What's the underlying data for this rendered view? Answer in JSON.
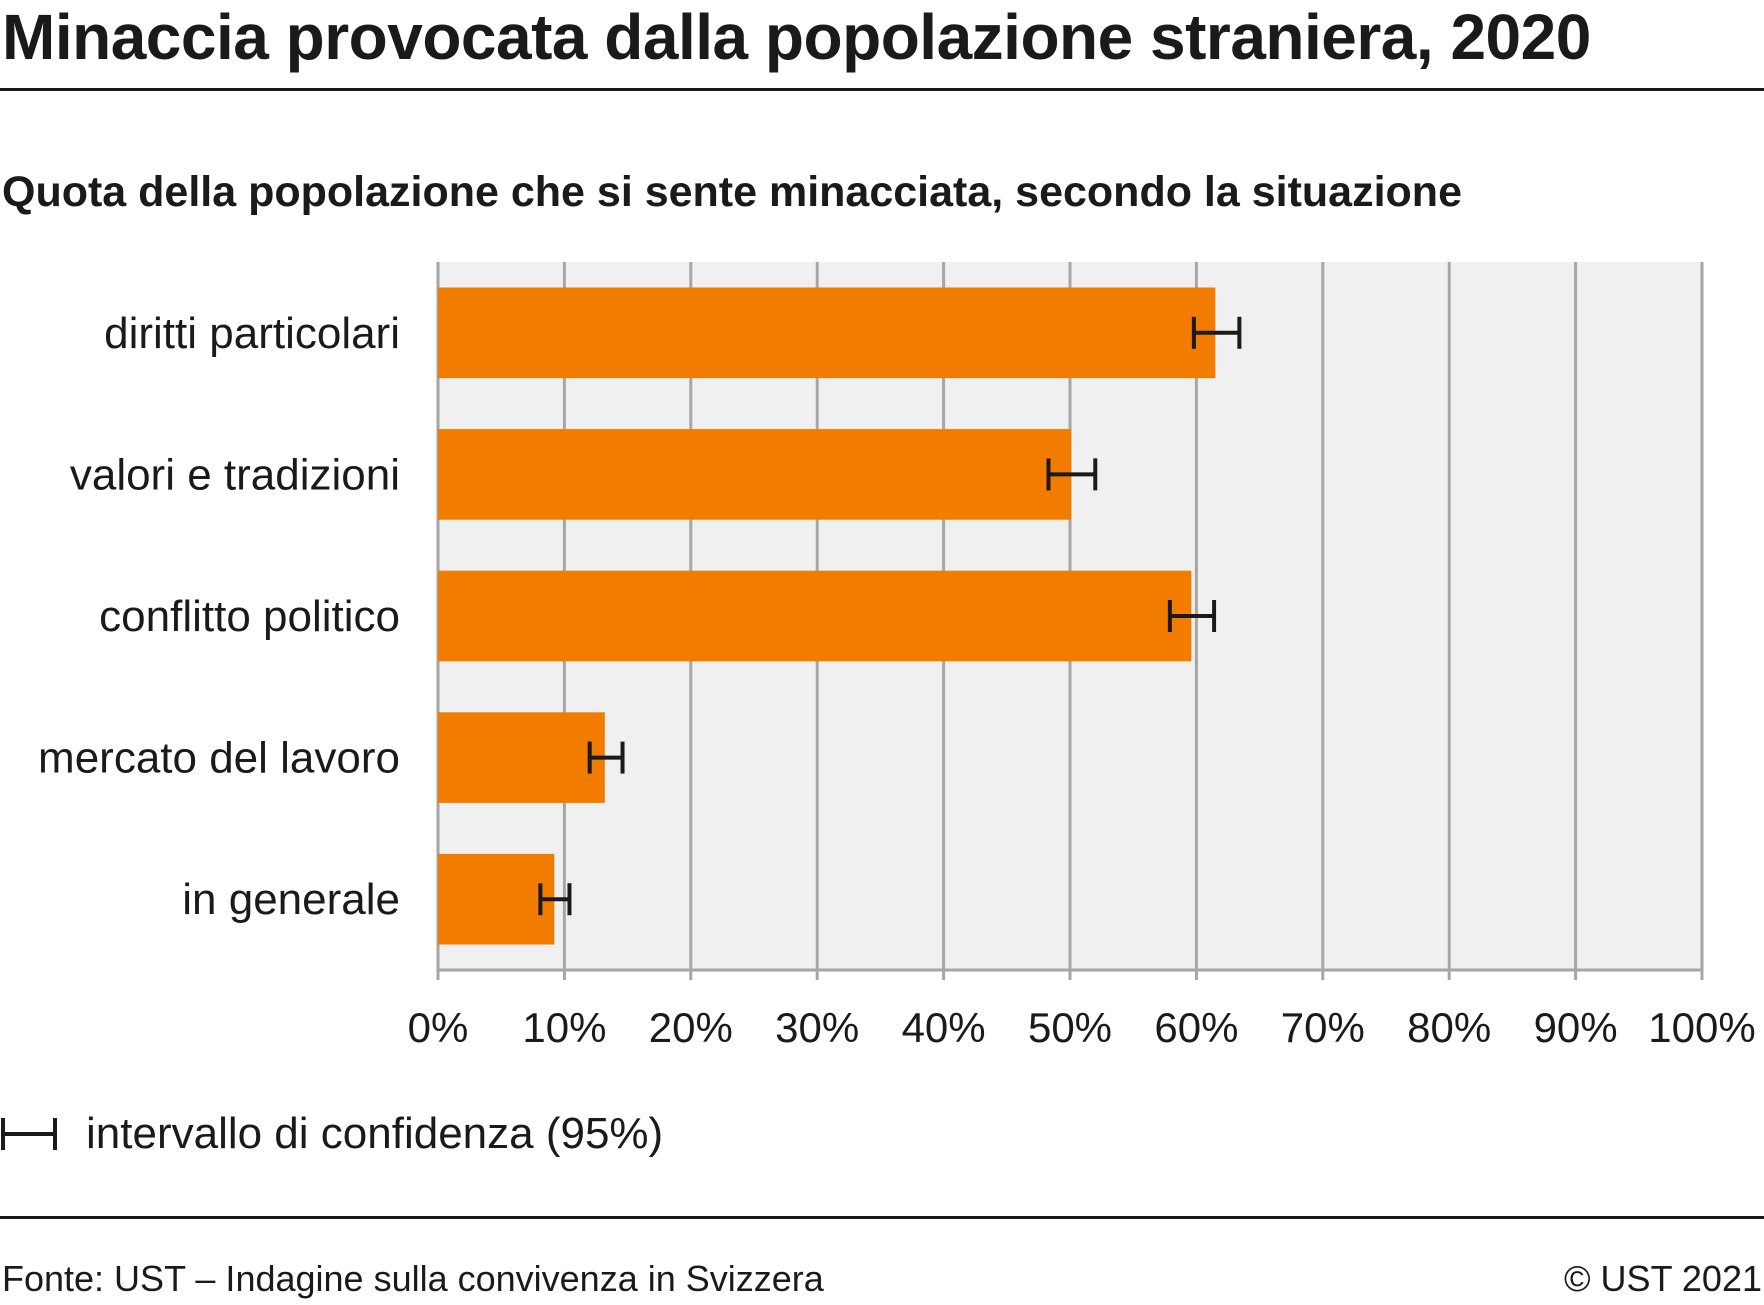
{
  "header": {
    "title": "Minaccia provocata dalla popolazione straniera, 2020"
  },
  "chart_data": {
    "type": "bar",
    "orientation": "horizontal",
    "title": "Minaccia provocata dalla popolazione straniera, 2020",
    "subtitle": "Quota della popolazione che si sente minacciata, secondo la situazione",
    "categories": [
      "diritti particolari",
      "valori e tradizioni",
      "conflitto politico",
      "mercato del lavoro",
      "in generale"
    ],
    "values": [
      61.5,
      50.1,
      59.6,
      13.2,
      9.2
    ],
    "ci_low": [
      59.8,
      48.3,
      57.9,
      12.0,
      8.1
    ],
    "ci_high": [
      63.4,
      52.0,
      61.4,
      14.6,
      10.4
    ],
    "xlim": [
      0,
      100
    ],
    "x_ticks": [
      "0%",
      "10%",
      "20%",
      "30%",
      "40%",
      "50%",
      "60%",
      "70%",
      "80%",
      "90%",
      "100%"
    ],
    "grid": true,
    "bar_color": "#f27c00",
    "errorbar_color": "#1a1a1a",
    "plot_background": "#f0f0f0",
    "grid_color": "#a6a6a6",
    "legend": {
      "label": "intervallo di confidenza (95%)",
      "placement": "bottom-left"
    }
  },
  "footer": {
    "source": "Fonte: UST – Indagine sulla convivenza in Svizzera",
    "copyright": "© UST 2021"
  }
}
